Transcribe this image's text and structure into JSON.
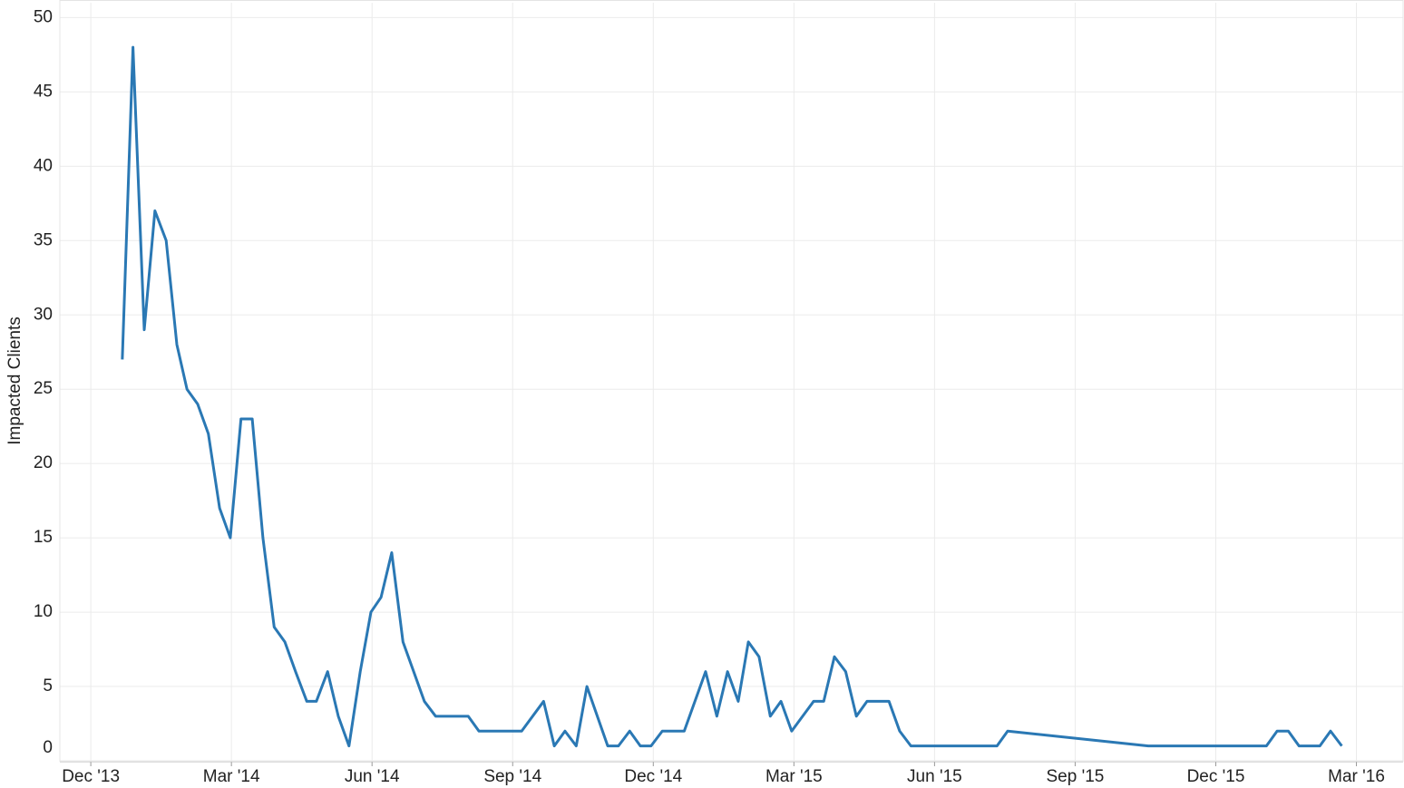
{
  "chart_data": {
    "type": "line",
    "y_label": "Impacted Clients",
    "color": "#2a78b4",
    "grid": true,
    "x": [
      2013.973,
      2013.992,
      2014.012,
      2014.031,
      2014.051,
      2014.07,
      2014.088,
      2014.107,
      2014.126,
      2014.146,
      2014.165,
      2014.184,
      2014.204,
      2014.223,
      2014.243,
      2014.262,
      2014.281,
      2014.301,
      2014.318,
      2014.338,
      2014.357,
      2014.376,
      2014.396,
      2014.415,
      2014.433,
      2014.452,
      2014.472,
      2014.491,
      2014.51,
      2014.53,
      2014.549,
      2014.568,
      2014.588,
      2014.607,
      2014.626,
      2014.646,
      2014.665,
      2014.683,
      2014.722,
      2014.741,
      2014.76,
      2014.78,
      2014.799,
      2014.836,
      2014.855,
      2014.875,
      2014.894,
      2014.913,
      2014.933,
      2014.952,
      2014.972,
      2015.01,
      2015.03,
      2015.049,
      2015.068,
      2015.086,
      2015.105,
      2015.125,
      2015.144,
      2015.163,
      2015.202,
      2015.22,
      2015.239,
      2015.259,
      2015.278,
      2015.297,
      2015.317,
      2015.336,
      2015.355,
      2015.375,
      2015.528,
      2015.547,
      2015.797,
      2016.007,
      2016.026,
      2016.046,
      2016.065,
      2016.102,
      2016.121,
      2016.141
    ],
    "values": [
      27,
      48,
      29,
      37,
      35,
      28,
      25,
      24,
      22,
      17,
      15,
      23,
      23,
      15,
      9,
      8,
      6,
      4,
      4,
      6,
      3,
      1,
      6,
      10,
      11,
      14,
      8,
      6,
      4,
      3,
      3,
      3,
      3,
      2,
      2,
      2,
      2,
      2,
      4,
      1,
      2,
      1,
      5,
      1,
      1,
      2,
      1,
      1,
      2,
      2,
      2,
      6,
      3,
      6,
      4,
      8,
      7,
      3,
      4,
      2,
      4,
      4,
      7,
      6,
      3,
      4,
      4,
      4,
      2,
      1,
      1,
      2,
      1,
      1,
      2,
      2,
      1,
      1,
      2,
      1
    ],
    "xlim": [
      2013.862,
      2016.25
    ],
    "xticks": [
      {
        "value": 2013.917,
        "label": "Dec '13"
      },
      {
        "value": 2014.167,
        "label": "Mar '14"
      },
      {
        "value": 2014.417,
        "label": "Jun '14"
      },
      {
        "value": 2014.667,
        "label": "Sep '14"
      },
      {
        "value": 2014.917,
        "label": "Dec '14"
      },
      {
        "value": 2015.167,
        "label": "Mar '15"
      },
      {
        "value": 2015.417,
        "label": "Jun '15"
      },
      {
        "value": 2015.667,
        "label": "Sep '15"
      },
      {
        "value": 2015.917,
        "label": "Dec '15"
      },
      {
        "value": 2016.167,
        "label": "Mar '16"
      }
    ],
    "ylim": [
      0,
      51
    ],
    "yticks": [
      0,
      5,
      10,
      15,
      20,
      25,
      30,
      35,
      40,
      45,
      50
    ]
  }
}
